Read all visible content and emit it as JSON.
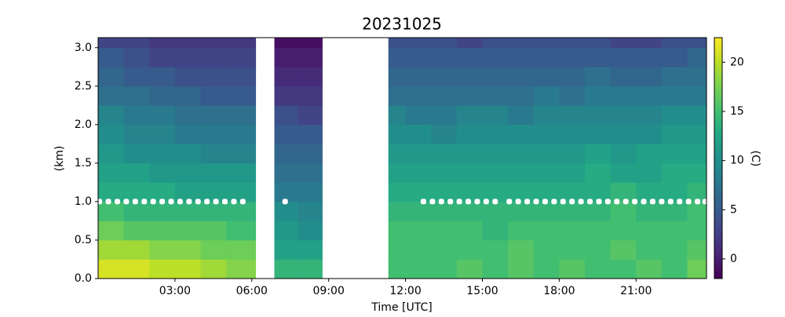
{
  "chart_data": {
    "type": "heatmap",
    "title": "20231025",
    "xlabel": "Time [UTC]",
    "ylabel": "(km)",
    "colorbar_label": "(C)",
    "colormap": "viridis",
    "x_edges": [
      0,
      1,
      2,
      3,
      4,
      5,
      6.15,
      6.88,
      7.8,
      8.75,
      11.33,
      12,
      13,
      14,
      15,
      16,
      17,
      18,
      19,
      20,
      21,
      22,
      23,
      23.75
    ],
    "y_edges": [
      0,
      0.25,
      0.5,
      0.75,
      1.0,
      1.25,
      1.5,
      1.75,
      2.0,
      2.25,
      2.5,
      2.75,
      3.0,
      3.13
    ],
    "z": [
      [
        21,
        19,
        17,
        15,
        13,
        12,
        11,
        10,
        9,
        7,
        6,
        5,
        3
      ],
      [
        21,
        19,
        16,
        14,
        13,
        12,
        10,
        9,
        8,
        7,
        5,
        4,
        3
      ],
      [
        20,
        18,
        16,
        14,
        13,
        11,
        10,
        9,
        8,
        6,
        5,
        3,
        2
      ],
      [
        20,
        18,
        16,
        14,
        12,
        11,
        10,
        8,
        7,
        6,
        4,
        3,
        2
      ],
      [
        19,
        17,
        16,
        14,
        12,
        11,
        9,
        8,
        7,
        5,
        4,
        3,
        2
      ],
      [
        18,
        17,
        15,
        14,
        12,
        11,
        9,
        8,
        7,
        5,
        4,
        3,
        2
      ],
      null,
      [
        14,
        12,
        11,
        10,
        8,
        7,
        6,
        5,
        4,
        2,
        1,
        0,
        -1
      ],
      [
        14,
        12,
        10,
        9,
        8,
        7,
        6,
        5,
        3,
        2,
        1,
        0,
        -1
      ],
      null,
      [
        15,
        15,
        15,
        14,
        13,
        12,
        11,
        10,
        9,
        7,
        6,
        5,
        4
      ],
      [
        15,
        15,
        15,
        14,
        13,
        12,
        11,
        10,
        8,
        7,
        6,
        5,
        4
      ],
      [
        15,
        15,
        15,
        14,
        13,
        12,
        11,
        9,
        8,
        7,
        6,
        5,
        4
      ],
      [
        16,
        15,
        15,
        14,
        13,
        12,
        11,
        10,
        9,
        7,
        6,
        5,
        3
      ],
      [
        15,
        15,
        14,
        14,
        13,
        12,
        11,
        10,
        9,
        7,
        6,
        5,
        4
      ],
      [
        16,
        16,
        15,
        14,
        13,
        12,
        11,
        10,
        8,
        7,
        6,
        5,
        4
      ],
      [
        15,
        15,
        15,
        14,
        13,
        12,
        11,
        10,
        9,
        8,
        6,
        5,
        4
      ],
      [
        16,
        15,
        15,
        14,
        13,
        12,
        11,
        10,
        9,
        7,
        6,
        5,
        4
      ],
      [
        15,
        15,
        15,
        14,
        13,
        13,
        12,
        10,
        9,
        8,
        7,
        5,
        4
      ],
      [
        15,
        16,
        15,
        15,
        14,
        12,
        11,
        10,
        9,
        8,
        6,
        5,
        3
      ],
      [
        16,
        15,
        15,
        14,
        13,
        12,
        12,
        10,
        9,
        8,
        6,
        5,
        3
      ],
      [
        15,
        15,
        15,
        14,
        13,
        13,
        12,
        11,
        10,
        8,
        7,
        5,
        4
      ],
      [
        17,
        16,
        15,
        15,
        14,
        13,
        12,
        11,
        10,
        8,
        7,
        6,
        4
      ]
    ],
    "markers": {
      "color": "#ffffff",
      "x": [
        0.05,
        0.4,
        0.75,
        1.1,
        1.45,
        1.8,
        2.15,
        2.5,
        2.85,
        3.2,
        3.55,
        3.9,
        4.25,
        4.6,
        4.95,
        5.3,
        5.65,
        7.3,
        12.7,
        13.05,
        13.4,
        13.75,
        14.1,
        14.45,
        14.8,
        15.15,
        15.5,
        16.05,
        16.4,
        16.75,
        17.1,
        17.45,
        17.8,
        18.15,
        18.5,
        18.85,
        19.2,
        19.55,
        19.9,
        20.25,
        20.6,
        20.95,
        21.3,
        21.65,
        22.0,
        22.35,
        22.7,
        23.05,
        23.4,
        23.7
      ],
      "values": [
        1,
        1,
        1,
        1,
        1,
        1,
        1,
        1,
        1,
        1,
        1,
        1,
        1,
        1,
        1,
        1,
        1,
        1,
        1,
        1,
        1,
        1,
        1,
        1,
        1,
        1,
        1,
        1,
        1,
        1,
        1,
        1,
        1,
        1,
        1,
        1,
        1,
        1,
        1,
        1,
        1,
        1,
        1,
        1,
        1,
        1,
        1,
        1,
        1,
        1
      ]
    },
    "xlim": [
      0,
      23.75
    ],
    "ylim": [
      0,
      3.13
    ],
    "clim": [
      -2.0,
      22.5
    ],
    "xticks": [
      {
        "value": 3,
        "label": "03:00"
      },
      {
        "value": 6,
        "label": "06:00"
      },
      {
        "value": 9,
        "label": "09:00"
      },
      {
        "value": 12,
        "label": "12:00"
      },
      {
        "value": 15,
        "label": "15:00"
      },
      {
        "value": 18,
        "label": "18:00"
      },
      {
        "value": 21,
        "label": "21:00"
      }
    ],
    "yticks": [
      {
        "value": 0,
        "label": "0.0"
      },
      0.5,
      {
        "value": 1,
        "label": "1.0"
      },
      1.5,
      {
        "value": 2,
        "label": "2.0"
      },
      2.5,
      {
        "value": 3,
        "label": "3.0"
      }
    ],
    "cticks": [
      0,
      5,
      10,
      15,
      20
    ]
  }
}
